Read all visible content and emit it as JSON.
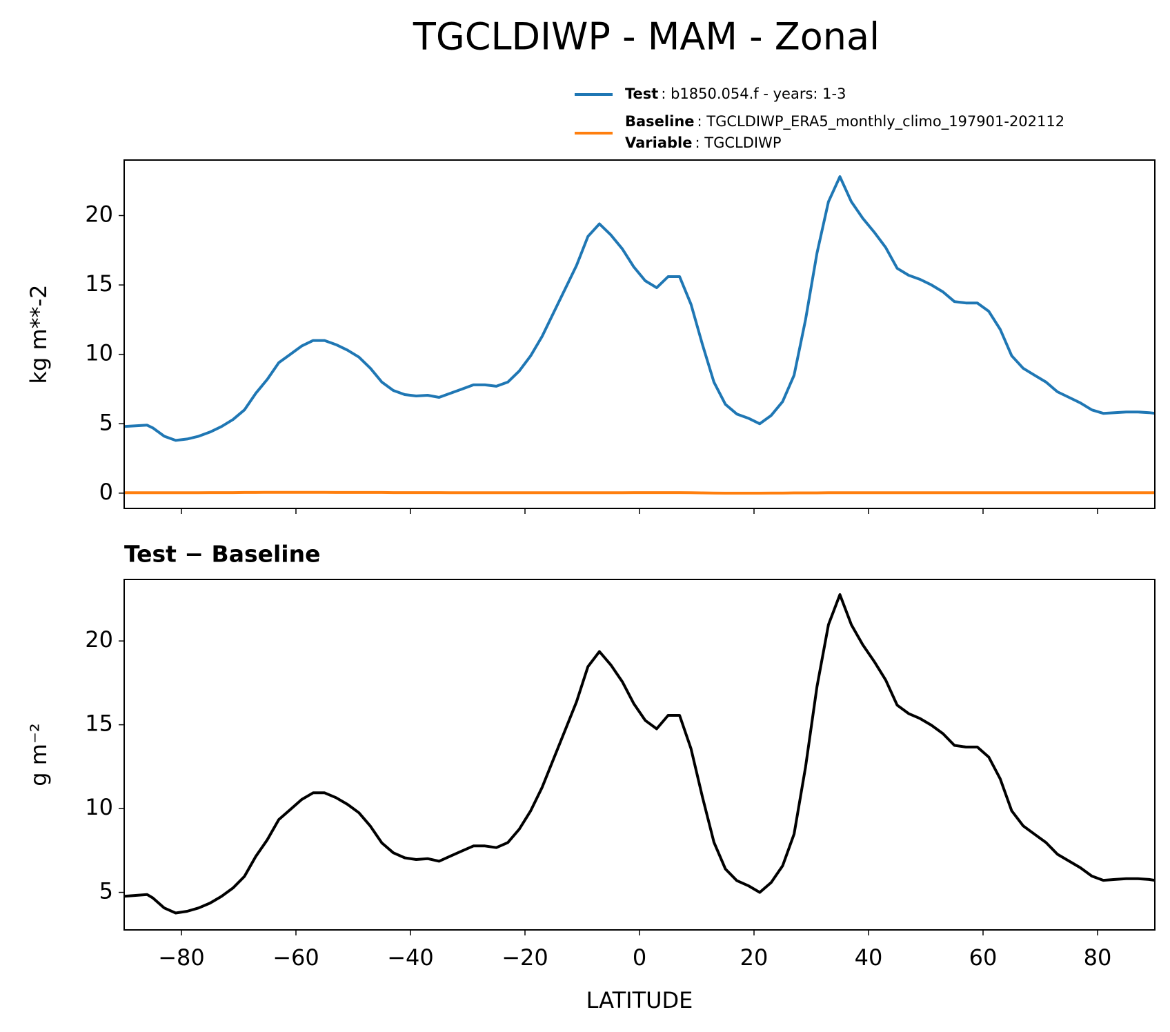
{
  "chart_data": [
    {
      "type": "line",
      "title": "TGCLDIWP - MAM - Zonal",
      "ylabel": "kg m**-2",
      "x": [
        -90,
        -88,
        -86,
        -85,
        -83,
        -81,
        -79,
        -77,
        -75,
        -73,
        -71,
        -69,
        -67,
        -65,
        -63,
        -61,
        -59,
        -57,
        -55,
        -53,
        -51,
        -49,
        -47,
        -45,
        -43,
        -41,
        -39,
        -37,
        -35,
        -33,
        -31,
        -29,
        -27,
        -25,
        -23,
        -21,
        -19,
        -17,
        -15,
        -13,
        -11,
        -9,
        -7,
        -5,
        -3,
        -1,
        1,
        3,
        5,
        7,
        9,
        11,
        13,
        15,
        17,
        19,
        21,
        23,
        25,
        27,
        29,
        31,
        33,
        35,
        37,
        39,
        41,
        43,
        45,
        47,
        49,
        51,
        53,
        55,
        57,
        59,
        61,
        63,
        65,
        67,
        69,
        71,
        73,
        75,
        77,
        79,
        81,
        83,
        85,
        87,
        89,
        90
      ],
      "series": [
        {
          "name": "Test",
          "description": ": b1850.054.f - years: 1-3",
          "color": "#1f77b4",
          "values": [
            4.8,
            4.85,
            4.9,
            4.7,
            4.1,
            3.8,
            3.9,
            4.1,
            4.4,
            4.8,
            5.3,
            6.0,
            7.2,
            8.2,
            9.4,
            10.0,
            10.6,
            11.0,
            11.0,
            10.7,
            10.3,
            9.8,
            9.0,
            8.0,
            7.4,
            7.1,
            7.0,
            7.05,
            6.9,
            7.2,
            7.5,
            7.8,
            7.8,
            7.7,
            8.0,
            8.8,
            9.9,
            11.3,
            13.0,
            14.7,
            16.4,
            18.5,
            19.4,
            18.6,
            17.6,
            16.3,
            15.3,
            14.8,
            15.6,
            15.6,
            13.6,
            10.7,
            8.0,
            6.4,
            5.7,
            5.4,
            5.0,
            5.6,
            6.6,
            8.5,
            12.5,
            17.3,
            21.0,
            22.8,
            21.0,
            19.8,
            18.8,
            17.7,
            16.2,
            15.7,
            15.4,
            15.0,
            14.5,
            13.8,
            13.7,
            13.7,
            13.1,
            11.8,
            9.9,
            9.0,
            8.5,
            8.0,
            7.3,
            6.9,
            6.5,
            6.0,
            5.75,
            5.8,
            5.85,
            5.85,
            5.8,
            5.75
          ]
        },
        {
          "name": "Baseline",
          "description": ": TGCLDIWP_ERA5_monthly_climo_197901-202112",
          "extra_name": "Variable",
          "extra_description": ": TGCLDIWP",
          "color": "#ff7f0e",
          "values": [
            0.03,
            0.03,
            0.03,
            0.03,
            0.03,
            0.03,
            0.03,
            0.03,
            0.04,
            0.04,
            0.04,
            0.05,
            0.05,
            0.06,
            0.06,
            0.06,
            0.06,
            0.06,
            0.06,
            0.05,
            0.05,
            0.05,
            0.05,
            0.05,
            0.04,
            0.04,
            0.04,
            0.04,
            0.04,
            0.03,
            0.03,
            0.03,
            0.03,
            0.03,
            0.03,
            0.03,
            0.03,
            0.03,
            0.03,
            0.03,
            0.03,
            0.03,
            0.03,
            0.03,
            0.03,
            0.04,
            0.04,
            0.04,
            0.04,
            0.04,
            0.03,
            0.02,
            0.01,
            0.0,
            0.0,
            0.0,
            0.0,
            0.01,
            0.01,
            0.02,
            0.02,
            0.02,
            0.03,
            0.03,
            0.03,
            0.03,
            0.03,
            0.03,
            0.03,
            0.03,
            0.03,
            0.03,
            0.03,
            0.03,
            0.03,
            0.03,
            0.03,
            0.03,
            0.03,
            0.03,
            0.03,
            0.03,
            0.03,
            0.03,
            0.03,
            0.03,
            0.03,
            0.03,
            0.03,
            0.03,
            0.03,
            0.03
          ]
        }
      ],
      "xlim": [
        -90,
        90
      ],
      "xticks": [
        -80,
        -60,
        -40,
        -20,
        0,
        20,
        40,
        60,
        80
      ],
      "xtick_labels": false,
      "ylim": [
        -1.1,
        24.0
      ],
      "yticks": [
        0,
        5,
        10,
        15,
        20
      ]
    },
    {
      "type": "line",
      "title": "Test − Baseline",
      "ylabel": "g m⁻²",
      "xlabel": "LATITUDE",
      "x": [
        -90,
        -88,
        -86,
        -85,
        -83,
        -81,
        -79,
        -77,
        -75,
        -73,
        -71,
        -69,
        -67,
        -65,
        -63,
        -61,
        -59,
        -57,
        -55,
        -53,
        -51,
        -49,
        -47,
        -45,
        -43,
        -41,
        -39,
        -37,
        -35,
        -33,
        -31,
        -29,
        -27,
        -25,
        -23,
        -21,
        -19,
        -17,
        -15,
        -13,
        -11,
        -9,
        -7,
        -5,
        -3,
        -1,
        1,
        3,
        5,
        7,
        9,
        11,
        13,
        15,
        17,
        19,
        21,
        23,
        25,
        27,
        29,
        31,
        33,
        35,
        37,
        39,
        41,
        43,
        45,
        47,
        49,
        51,
        53,
        55,
        57,
        59,
        61,
        63,
        65,
        67,
        69,
        71,
        73,
        75,
        77,
        79,
        81,
        83,
        85,
        87,
        89,
        90
      ],
      "series": [
        {
          "color": "#000000",
          "values": [
            4.77,
            4.82,
            4.87,
            4.67,
            4.07,
            3.77,
            3.87,
            4.07,
            4.36,
            4.76,
            5.26,
            5.95,
            7.15,
            8.14,
            9.34,
            9.94,
            10.54,
            10.94,
            10.94,
            10.65,
            10.25,
            9.75,
            8.95,
            7.95,
            7.36,
            7.06,
            6.96,
            7.01,
            6.86,
            7.17,
            7.47,
            7.77,
            7.77,
            7.67,
            7.97,
            8.77,
            9.87,
            11.27,
            12.97,
            14.67,
            16.37,
            18.47,
            19.37,
            18.57,
            17.57,
            16.26,
            15.26,
            14.76,
            15.56,
            15.56,
            13.57,
            10.68,
            7.99,
            6.4,
            5.7,
            5.4,
            5.0,
            5.59,
            6.59,
            8.48,
            12.48,
            17.28,
            20.97,
            22.77,
            20.97,
            19.77,
            18.77,
            17.67,
            16.17,
            15.67,
            15.37,
            14.97,
            14.47,
            13.77,
            13.67,
            13.67,
            13.07,
            11.77,
            9.87,
            8.97,
            8.47,
            7.97,
            7.27,
            6.87,
            6.47,
            5.97,
            5.72,
            5.77,
            5.82,
            5.82,
            5.77,
            5.72
          ]
        }
      ],
      "xlim": [
        -90,
        90
      ],
      "xticks": [
        {
          "value": -80,
          "label": "−80"
        },
        {
          "value": -60,
          "label": "−60"
        },
        {
          "value": -40,
          "label": "−40"
        },
        {
          "value": -20,
          "label": "−20"
        },
        0,
        20,
        40,
        60,
        80
      ],
      "ylim": [
        2.76,
        23.67
      ],
      "yticks": [
        5,
        10,
        15,
        20
      ]
    }
  ]
}
